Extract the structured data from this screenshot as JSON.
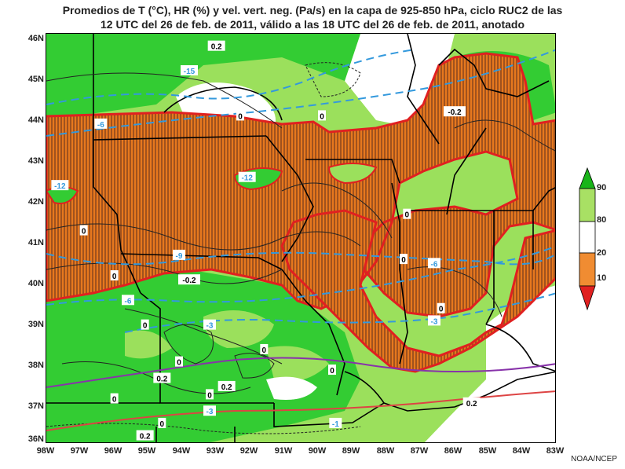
{
  "title_lines": [
    "Promedios de T (°C), HR (%) y vel. vert. neg. (Pa/s) en la capa de 925-850 hPa, ciclo RUC2 de las",
    "12 UTC del 26 de feb. de 2011, válido a las 18 UTC del 26 de feb. de 2011, anotado"
  ],
  "lat_labels": [
    "46N",
    "45N",
    "44N",
    "43N",
    "42N",
    "41N",
    "40N",
    "39N",
    "38N",
    "37N",
    "36N"
  ],
  "lon_labels": [
    "98W",
    "97W",
    "96W",
    "95W",
    "94W",
    "93W",
    "92W",
    "91W",
    "90W",
    "89W",
    "88W",
    "87W",
    "86W",
    "85W",
    "84W",
    "83W"
  ],
  "legend": {
    "labels": [
      "90",
      "80",
      "20",
      "10"
    ],
    "colors": [
      "#19b419",
      "#a8e064",
      "#ffffff",
      "#f08c32",
      "#e02020"
    ]
  },
  "fill_colors": {
    "green_dark": "#33cc33",
    "green_light": "#9be05c",
    "dry": "#a0521e",
    "dry_hatch": "#e6781e",
    "outline": "#e02020"
  },
  "contour_labels": [
    {
      "text": "0.2",
      "lon": -93.0,
      "lat": 45.7
    },
    {
      "text": "-15",
      "lon": -93.8,
      "lat": 45.1
    },
    {
      "text": "0",
      "lon": -92.3,
      "lat": 44.0
    },
    {
      "text": "0",
      "lon": -89.9,
      "lat": 44.0
    },
    {
      "text": "-0.2",
      "lon": -86.0,
      "lat": 44.1
    },
    {
      "text": "-12",
      "lon": -97.6,
      "lat": 42.3
    },
    {
      "text": "-12",
      "lon": -92.1,
      "lat": 42.5
    },
    {
      "text": "0",
      "lon": -96.9,
      "lat": 41.2
    },
    {
      "text": "-9",
      "lon": -94.1,
      "lat": 40.6
    },
    {
      "text": "0",
      "lon": -96.0,
      "lat": 40.1
    },
    {
      "text": "-0.2",
      "lon": -93.8,
      "lat": 40.0
    },
    {
      "text": "-6",
      "lon": -95.6,
      "lat": 39.5
    },
    {
      "text": "-6",
      "lon": -86.6,
      "lat": 40.4
    },
    {
      "text": "0",
      "lon": -87.5,
      "lat": 40.5
    },
    {
      "text": "-3",
      "lon": -93.2,
      "lat": 38.9
    },
    {
      "text": "0",
      "lon": -95.1,
      "lat": 38.9
    },
    {
      "text": "0",
      "lon": -94.1,
      "lat": 38.0
    },
    {
      "text": "0",
      "lon": -91.6,
      "lat": 38.3
    },
    {
      "text": "0.2",
      "lon": -94.6,
      "lat": 37.6
    },
    {
      "text": "0.2",
      "lon": -92.7,
      "lat": 37.4
    },
    {
      "text": "0",
      "lon": -93.2,
      "lat": 37.2
    },
    {
      "text": "0",
      "lon": -96.0,
      "lat": 37.1
    },
    {
      "text": "-3",
      "lon": -93.2,
      "lat": 36.8
    },
    {
      "text": "0",
      "lon": -94.6,
      "lat": 36.5
    },
    {
      "text": "0.2",
      "lon": -95.1,
      "lat": 36.2
    },
    {
      "text": "-1",
      "lon": -89.5,
      "lat": 36.5
    },
    {
      "text": "0.2",
      "lon": -85.5,
      "lat": 37.0
    },
    {
      "text": "0",
      "lon": -89.6,
      "lat": 37.8
    },
    {
      "text": "-3",
      "lon": -86.6,
      "lat": 39.0
    },
    {
      "text": "0",
      "lon": -86.4,
      "lat": 39.3
    },
    {
      "text": "0",
      "lon": -87.4,
      "lat": 41.6
    },
    {
      "text": "-6",
      "lon": -96.4,
      "lat": 43.8
    }
  ]
}
